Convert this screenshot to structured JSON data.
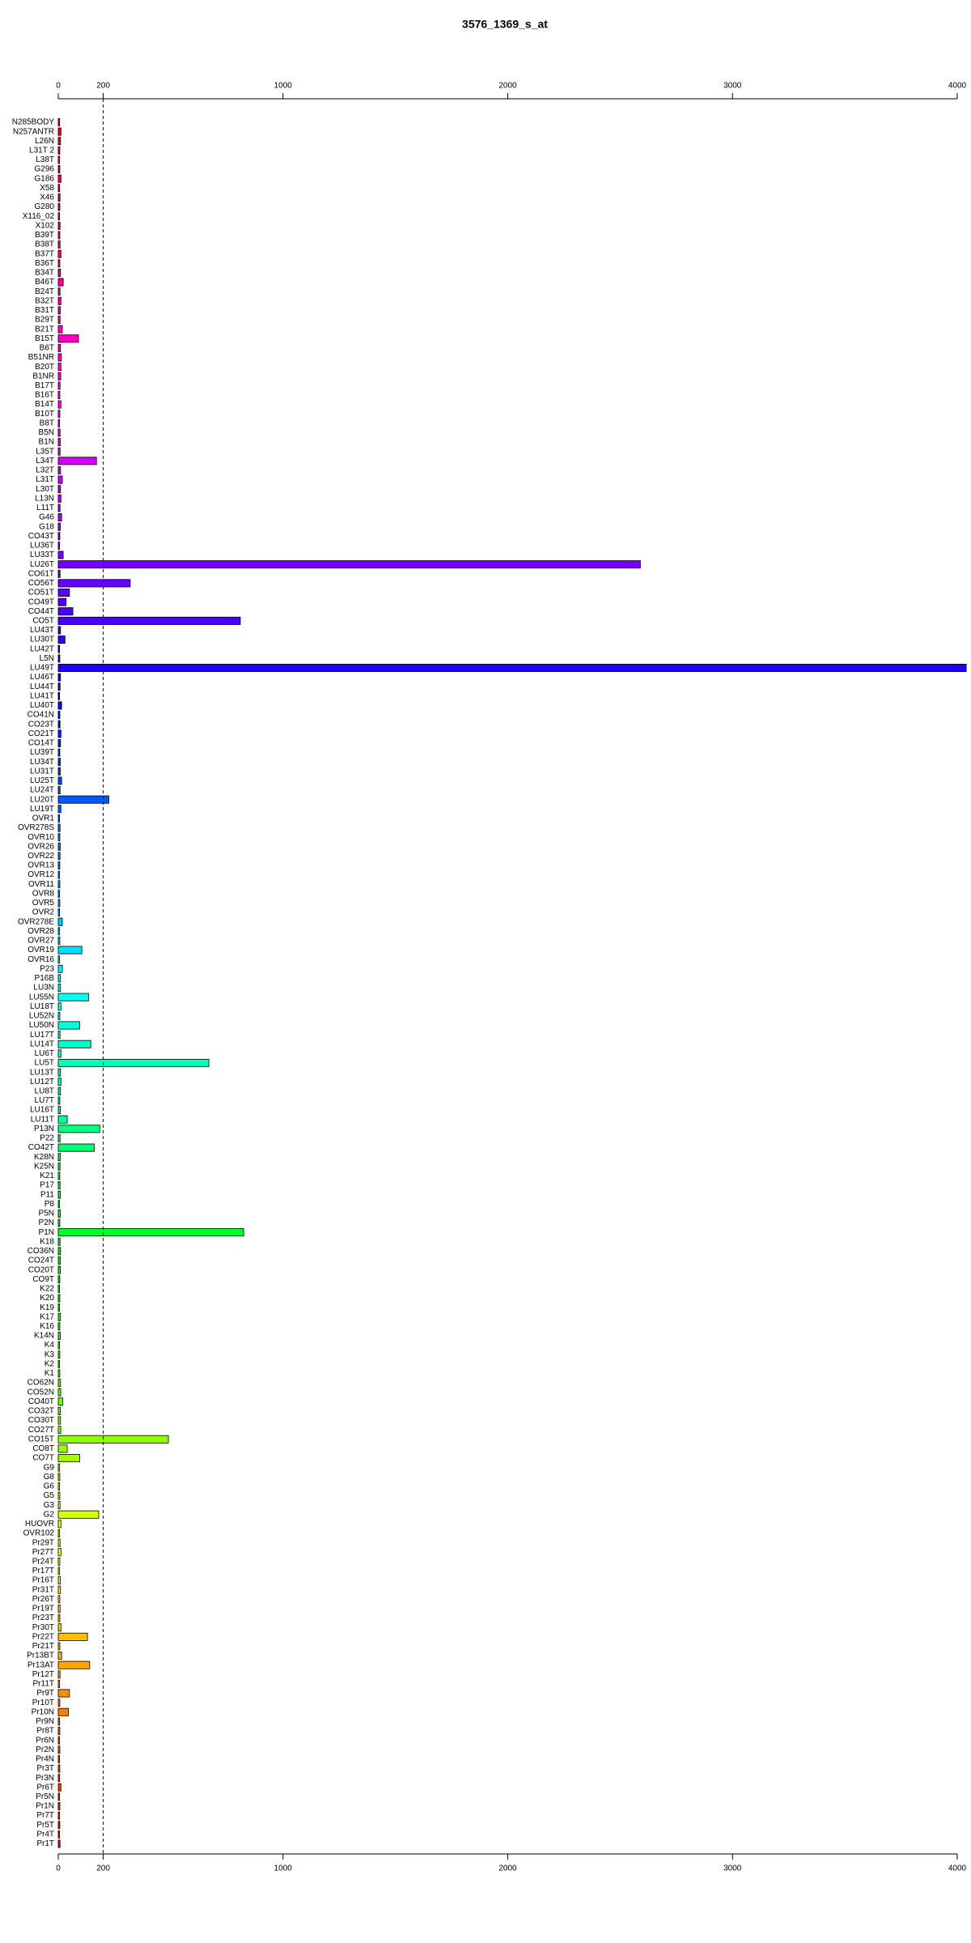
{
  "chart_data": {
    "type": "barh",
    "title": "3576_1369_s_at",
    "categories": [
      "N285BODY",
      "N257ANTR",
      "L26N",
      "L31T 2",
      "L38T",
      "G296",
      "G186",
      "X58",
      "X46",
      "G280",
      "X116_02",
      "X102",
      "B39T",
      "B38T",
      "B37T",
      "B36T",
      "B34T",
      "B46T",
      "B24T",
      "B32T",
      "B31T",
      "B29T",
      "B21T",
      "B15T",
      "B6T",
      "B51NR",
      "B20T",
      "B1NR",
      "B17T",
      "B16T",
      "B14T",
      "B10T",
      "B8T",
      "B5N",
      "B1N",
      "L35T",
      "L34T",
      "L32T",
      "L31T",
      "L30T",
      "L13N",
      "L11T",
      "G46",
      "G18",
      "CO43T",
      "LU36T",
      "LU33T",
      "LU26T",
      "CO61T",
      "CO56T",
      "CO51T",
      "CO49T",
      "CO44T",
      "CO5T",
      "LU43T",
      "LU30T",
      "LU42T",
      "L5N",
      "LU49T",
      "LU46T",
      "LU44T",
      "LU41T",
      "LU40T",
      "CO41N",
      "CO23T",
      "CO21T",
      "CO14T",
      "LU39T",
      "LU34T",
      "LU31T",
      "LU25T",
      "LU24T",
      "LU20T",
      "LU19T",
      "OVR1",
      "OVR278S",
      "OVR10",
      "OVR26",
      "OVR22",
      "OVR13",
      "OVR12",
      "OVR11",
      "OVR8",
      "OVR5",
      "OVR2",
      "OVR278E",
      "OVR28",
      "OVR27",
      "OVR19",
      "OVR16",
      "P23",
      "P16B",
      "LU3N",
      "LU55N",
      "LU18T",
      "LU52N",
      "LU50N",
      "LU17T",
      "LU14T",
      "LU6T",
      "LU5T",
      "LU13T",
      "LU12T",
      "LU8T",
      "LU7T",
      "LU16T",
      "LU11T",
      "P13N",
      "P22",
      "CO42T",
      "K28N",
      "K25N",
      "K21",
      "P17",
      "P11",
      "P8",
      "P5N",
      "P2N",
      "P1N",
      "K18",
      "CO36N",
      "CO24T",
      "CO20T",
      "CO9T",
      "K22",
      "K20",
      "K19",
      "K17",
      "K16",
      "K14N",
      "K4",
      "K3",
      "K2",
      "K1",
      "CO62N",
      "CO52N",
      "CO40T",
      "CO32T",
      "CO30T",
      "CO27T",
      "CO15T",
      "CO8T",
      "CO7T",
      "G9",
      "G8",
      "G6",
      "G5",
      "G3",
      "G2",
      "HUOVR",
      "OVR102",
      "Pr29T",
      "Pr27T",
      "Pr24T",
      "Pr17T",
      "Pr16T",
      "Pr31T",
      "Pr26T",
      "Pr19T",
      "Pr23T",
      "Pr30T",
      "Pr22T",
      "Pr21T",
      "Pr13BT",
      "Pr13AT",
      "Pr12T",
      "Pr11T",
      "Pr9T",
      "Pr10T",
      "Pr10N",
      "Pr9N",
      "Pr8T",
      "Pr6N",
      "Pr2N",
      "Pr4N",
      "Pr3T",
      "Pr3N",
      "Pr6T",
      "Pr5N",
      "Pr1N",
      "Pr7T",
      "Pr5T",
      "Pr4T",
      "Pr1T"
    ],
    "values": [
      6,
      12,
      10,
      7,
      6,
      7,
      12,
      6,
      8,
      7,
      6,
      8,
      7,
      8,
      12,
      7,
      10,
      22,
      8,
      12,
      9,
      8,
      18,
      90,
      10,
      14,
      12,
      11,
      8,
      7,
      12,
      7,
      6,
      8,
      9,
      8,
      170,
      10,
      18,
      10,
      12,
      8,
      15,
      9,
      7,
      6,
      22,
      2590,
      8,
      320,
      50,
      35,
      65,
      810,
      10,
      30,
      6,
      7,
      4040,
      10,
      8,
      6,
      15,
      7,
      8,
      12,
      10,
      7,
      9,
      9,
      15,
      8,
      225,
      12,
      6,
      8,
      7,
      9,
      8,
      7,
      6,
      7,
      6,
      7,
      6,
      18,
      6,
      7,
      105,
      6,
      18,
      10,
      10,
      135,
      12,
      7,
      95,
      8,
      145,
      12,
      670,
      10,
      12,
      10,
      7,
      9,
      40,
      185,
      8,
      160,
      9,
      8,
      7,
      8,
      9,
      6,
      9,
      7,
      825,
      8,
      10,
      9,
      9,
      7,
      6,
      7,
      6,
      10,
      7,
      9,
      6,
      7,
      6,
      7,
      10,
      11,
      20,
      9,
      10,
      11,
      490,
      40,
      95,
      6,
      7,
      6,
      7,
      8,
      180,
      12,
      6,
      8,
      12,
      7,
      6,
      9,
      10,
      7,
      8,
      7,
      12,
      130,
      7,
      15,
      140,
      8,
      6,
      50,
      7,
      45,
      6,
      7,
      6,
      7,
      6,
      7,
      6,
      12,
      6,
      7,
      6,
      7,
      6,
      8
    ],
    "palette": "rainbow",
    "xlim": [
      0,
      4000
    ],
    "xticks": [
      0,
      200,
      1000,
      2000,
      3000,
      4000
    ],
    "reference_line": 200
  }
}
